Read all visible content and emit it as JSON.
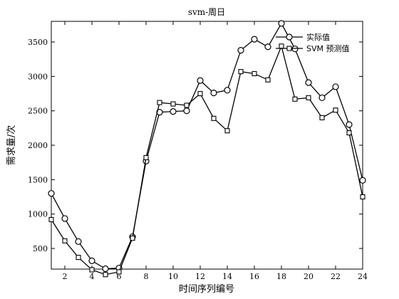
{
  "chart_data": {
    "type": "line",
    "title": "svm-周日",
    "xlabel": "时间序列编号",
    "ylabel": "需求量/次",
    "xlim": [
      1,
      24
    ],
    "ylim": [
      200,
      3800
    ],
    "x": [
      1,
      2,
      3,
      4,
      5,
      6,
      7,
      8,
      9,
      10,
      11,
      12,
      13,
      14,
      15,
      16,
      17,
      18,
      19,
      20,
      21,
      22,
      23,
      24
    ],
    "xticks": [
      2,
      4,
      6,
      8,
      10,
      12,
      14,
      16,
      18,
      20,
      22,
      24
    ],
    "yticks": [
      500,
      1000,
      1500,
      2000,
      2500,
      3000,
      3500
    ],
    "grid": false,
    "legend_position": "top-right",
    "series": [
      {
        "name": "实际值",
        "marker": "circle",
        "values": [
          1300,
          935,
          600,
          320,
          205,
          215,
          670,
          1770,
          2480,
          2490,
          2500,
          2940,
          2760,
          2800,
          3380,
          3540,
          3430,
          3770,
          3400,
          2910,
          2690,
          2850,
          2300,
          1490
        ]
      },
      {
        "name": "SVM 预测值",
        "marker": "square",
        "values": [
          920,
          610,
          370,
          190,
          120,
          160,
          650,
          1820,
          2620,
          2600,
          2580,
          2750,
          2390,
          2210,
          3070,
          3040,
          2950,
          3440,
          2670,
          2690,
          2400,
          2510,
          2180,
          1250
        ]
      }
    ]
  }
}
